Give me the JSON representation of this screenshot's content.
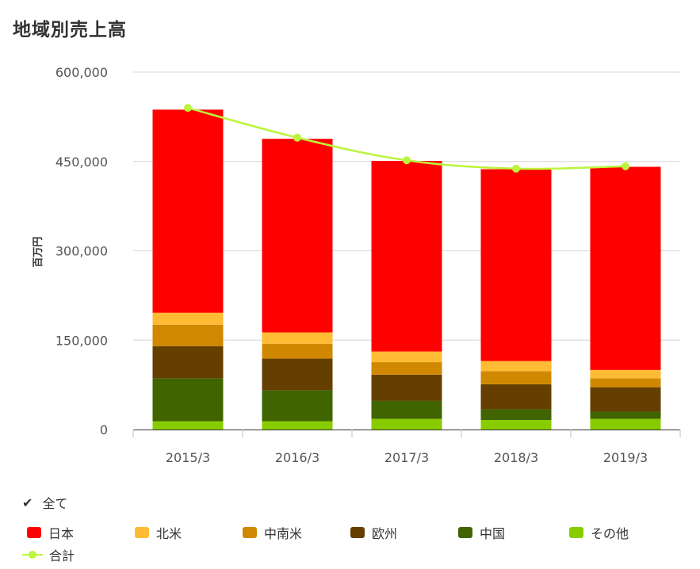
{
  "chart_data": {
    "type": "bar",
    "stacked": true,
    "title": "地域別売上高",
    "ylabel": "百万円",
    "xlabel": "",
    "ylim": [
      0,
      600000
    ],
    "yticks": [
      0,
      150000,
      300000,
      450000,
      600000
    ],
    "ytick_labels": [
      "0",
      "150,000",
      "300,000",
      "450,000",
      "600,000"
    ],
    "grid": true,
    "categories": [
      "2015/3",
      "2016/3",
      "2017/3",
      "2018/3",
      "2019/3"
    ],
    "series": [
      {
        "name": "その他",
        "color": "#88cc00",
        "values": [
          14000,
          14000,
          18000,
          16000,
          18000
        ]
      },
      {
        "name": "中国",
        "color": "#3f6400",
        "values": [
          72000,
          52000,
          30000,
          18000,
          12000
        ]
      },
      {
        "name": "欧州",
        "color": "#653f00",
        "values": [
          54000,
          53000,
          44000,
          42000,
          41000
        ]
      },
      {
        "name": "中南米",
        "color": "#d08800",
        "values": [
          36000,
          25000,
          21000,
          22000,
          15000
        ]
      },
      {
        "name": "北米",
        "color": "#ffbb33",
        "values": [
          20000,
          19000,
          18000,
          17000,
          14000
        ]
      },
      {
        "name": "日本",
        "color": "#ff0000",
        "values": [
          341000,
          325000,
          320000,
          322000,
          341000
        ]
      }
    ],
    "line_series": {
      "name": "合計",
      "color": "#bbf53d",
      "values": [
        540000,
        490000,
        452000,
        438000,
        442000
      ]
    }
  },
  "legend": {
    "all_label": "全て",
    "items": [
      {
        "label": "日本",
        "color": "#ff0000",
        "kind": "box"
      },
      {
        "label": "北米",
        "color": "#ffbb33",
        "kind": "box"
      },
      {
        "label": "中南米",
        "color": "#d08800",
        "kind": "box"
      },
      {
        "label": "欧州",
        "color": "#653f00",
        "kind": "box"
      },
      {
        "label": "中国",
        "color": "#3f6400",
        "kind": "box"
      },
      {
        "label": "その他",
        "color": "#88cc00",
        "kind": "box"
      },
      {
        "label": "合計",
        "color": "#bbf53d",
        "kind": "line"
      }
    ]
  }
}
